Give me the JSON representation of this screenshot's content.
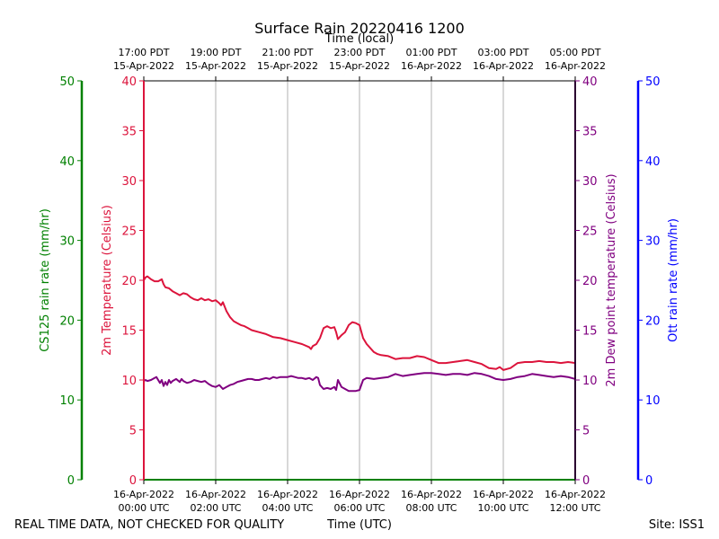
{
  "chart_data": {
    "type": "line",
    "title": "Surface Rain 20220416 1200",
    "top_axis_label": "Time (local)",
    "xlabel": "Time (UTC)",
    "footer_left": "REAL TIME DATA, NOT CHECKED FOR QUALITY",
    "footer_right": "Site: ISS1",
    "xlim_hours_utc": [
      0,
      12
    ],
    "x_ticks_utc": [
      {
        "hour": 0,
        "line1": "16-Apr-2022",
        "line2": "00:00 UTC"
      },
      {
        "hour": 2,
        "line1": "16-Apr-2022",
        "line2": "02:00 UTC"
      },
      {
        "hour": 4,
        "line1": "16-Apr-2022",
        "line2": "04:00 UTC"
      },
      {
        "hour": 6,
        "line1": "16-Apr-2022",
        "line2": "06:00 UTC"
      },
      {
        "hour": 8,
        "line1": "16-Apr-2022",
        "line2": "08:00 UTC"
      },
      {
        "hour": 10,
        "line1": "16-Apr-2022",
        "line2": "10:00 UTC"
      },
      {
        "hour": 12,
        "line1": "16-Apr-2022",
        "line2": "12:00 UTC"
      }
    ],
    "x_ticks_local": [
      {
        "hour": 0,
        "line1": "17:00 PDT",
        "line2": "15-Apr-2022"
      },
      {
        "hour": 2,
        "line1": "19:00 PDT",
        "line2": "15-Apr-2022"
      },
      {
        "hour": 4,
        "line1": "21:00 PDT",
        "line2": "15-Apr-2022"
      },
      {
        "hour": 6,
        "line1": "23:00 PDT",
        "line2": "15-Apr-2022"
      },
      {
        "hour": 8,
        "line1": "01:00 PDT",
        "line2": "16-Apr-2022"
      },
      {
        "hour": 10,
        "line1": "03:00 PDT",
        "line2": "16-Apr-2022"
      },
      {
        "hour": 12,
        "line1": "05:00 PDT",
        "line2": "16-Apr-2022"
      }
    ],
    "grid": "vertical",
    "axes": {
      "temperature": {
        "label": "2m Temperature (Celsius)",
        "ylim": [
          0,
          40
        ],
        "ticks": [
          0,
          5,
          10,
          15,
          20,
          25,
          30,
          35,
          40
        ],
        "color": "#dc143c"
      },
      "cs125": {
        "label": "CS125 rain rate (mm/hr)",
        "ylim": [
          0,
          50
        ],
        "ticks": [
          0,
          10,
          20,
          30,
          40,
          50
        ],
        "color": "#008000"
      },
      "dewpoint": {
        "label": "2m Dew point temperature (Celsius)",
        "ylim": [
          0,
          40
        ],
        "ticks": [
          0,
          5,
          10,
          15,
          20,
          25,
          30,
          35,
          40
        ],
        "color": "#800080"
      },
      "ott": {
        "label": "Ott rain rate (mm/hr)",
        "ylim": [
          0,
          50
        ],
        "ticks": [
          0,
          10,
          20,
          30,
          40,
          50
        ],
        "color": "#0000ff"
      }
    },
    "series": [
      {
        "name": "2m Temperature (Celsius)",
        "axis": "temperature",
        "color": "#dc143c",
        "x": [
          0,
          0.05,
          0.1,
          0.2,
          0.3,
          0.4,
          0.5,
          0.55,
          0.6,
          0.7,
          0.8,
          0.9,
          1.0,
          1.1,
          1.2,
          1.3,
          1.4,
          1.5,
          1.6,
          1.7,
          1.8,
          1.9,
          2.0,
          2.1,
          2.15,
          2.2,
          2.3,
          2.4,
          2.5,
          2.6,
          2.7,
          2.8,
          2.9,
          3.0,
          3.2,
          3.4,
          3.6,
          3.8,
          4.0,
          4.2,
          4.4,
          4.6,
          4.65,
          4.7,
          4.8,
          4.9,
          5.0,
          5.1,
          5.2,
          5.3,
          5.35,
          5.4,
          5.5,
          5.6,
          5.7,
          5.8,
          5.9,
          6.0,
          6.1,
          6.2,
          6.4,
          6.5,
          6.6,
          6.8,
          7.0,
          7.2,
          7.4,
          7.6,
          7.8,
          8.0,
          8.2,
          8.4,
          8.6,
          8.8,
          9.0,
          9.2,
          9.4,
          9.6,
          9.8,
          9.9,
          10.0,
          10.2,
          10.4,
          10.6,
          10.8,
          11.0,
          11.2,
          11.4,
          11.6,
          11.8,
          12.0
        ],
        "values": [
          20.0,
          20.3,
          20.4,
          20.1,
          19.9,
          19.9,
          20.1,
          19.6,
          19.3,
          19.2,
          18.9,
          18.7,
          18.5,
          18.7,
          18.6,
          18.3,
          18.1,
          18.0,
          18.2,
          18.0,
          18.1,
          17.9,
          18.0,
          17.7,
          17.5,
          17.8,
          16.9,
          16.3,
          15.9,
          15.7,
          15.5,
          15.4,
          15.2,
          15.0,
          14.8,
          14.6,
          14.3,
          14.2,
          14.0,
          13.8,
          13.6,
          13.3,
          13.1,
          13.4,
          13.6,
          14.2,
          15.2,
          15.4,
          15.2,
          15.3,
          14.8,
          14.1,
          14.5,
          14.8,
          15.5,
          15.8,
          15.7,
          15.5,
          14.2,
          13.6,
          12.8,
          12.6,
          12.5,
          12.4,
          12.1,
          12.2,
          12.2,
          12.4,
          12.3,
          12.0,
          11.7,
          11.7,
          11.8,
          11.9,
          12.0,
          11.8,
          11.6,
          11.2,
          11.1,
          11.3,
          11.0,
          11.2,
          11.7,
          11.8,
          11.8,
          11.9,
          11.8,
          11.8,
          11.7,
          11.8,
          11.7
        ]
      },
      {
        "name": "2m Dew point temperature (Celsius)",
        "axis": "dewpoint",
        "color": "#800080",
        "x": [
          0,
          0.05,
          0.1,
          0.2,
          0.3,
          0.35,
          0.4,
          0.45,
          0.5,
          0.55,
          0.6,
          0.65,
          0.7,
          0.75,
          0.8,
          0.9,
          1.0,
          1.05,
          1.1,
          1.2,
          1.3,
          1.4,
          1.5,
          1.6,
          1.7,
          1.8,
          1.9,
          2.0,
          2.1,
          2.2,
          2.3,
          2.4,
          2.5,
          2.6,
          2.7,
          2.8,
          2.9,
          3.0,
          3.1,
          3.2,
          3.3,
          3.4,
          3.5,
          3.6,
          3.7,
          3.8,
          3.9,
          4.0,
          4.1,
          4.2,
          4.3,
          4.4,
          4.5,
          4.6,
          4.7,
          4.8,
          4.85,
          4.9,
          5.0,
          5.1,
          5.2,
          5.3,
          5.35,
          5.4,
          5.5,
          5.6,
          5.7,
          5.8,
          5.9,
          6.0,
          6.1,
          6.2,
          6.4,
          6.6,
          6.8,
          7.0,
          7.2,
          7.4,
          7.6,
          7.8,
          8.0,
          8.2,
          8.4,
          8.6,
          8.8,
          9.0,
          9.2,
          9.4,
          9.6,
          9.8,
          10.0,
          10.2,
          10.4,
          10.6,
          10.8,
          11.0,
          11.2,
          11.4,
          11.6,
          11.8,
          12.0
        ],
        "values": [
          9.9,
          10.0,
          9.9,
          10.0,
          10.2,
          10.3,
          10.0,
          9.7,
          10.0,
          9.4,
          9.8,
          9.5,
          10.0,
          9.7,
          9.9,
          10.1,
          9.8,
          10.1,
          9.9,
          9.7,
          9.8,
          10.0,
          9.9,
          9.8,
          9.9,
          9.6,
          9.4,
          9.3,
          9.5,
          9.1,
          9.3,
          9.5,
          9.6,
          9.8,
          9.9,
          10.0,
          10.1,
          10.1,
          10.0,
          10.0,
          10.1,
          10.2,
          10.1,
          10.3,
          10.2,
          10.3,
          10.3,
          10.3,
          10.4,
          10.3,
          10.2,
          10.2,
          10.1,
          10.2,
          10.0,
          10.3,
          10.2,
          9.5,
          9.1,
          9.2,
          9.1,
          9.3,
          9.0,
          10.0,
          9.3,
          9.1,
          8.9,
          8.9,
          8.9,
          9.0,
          10.0,
          10.2,
          10.1,
          10.2,
          10.3,
          10.6,
          10.4,
          10.5,
          10.6,
          10.7,
          10.7,
          10.6,
          10.5,
          10.6,
          10.6,
          10.5,
          10.7,
          10.6,
          10.4,
          10.1,
          10.0,
          10.1,
          10.3,
          10.4,
          10.6,
          10.5,
          10.4,
          10.3,
          10.4,
          10.3,
          10.1
        ]
      }
    ]
  }
}
